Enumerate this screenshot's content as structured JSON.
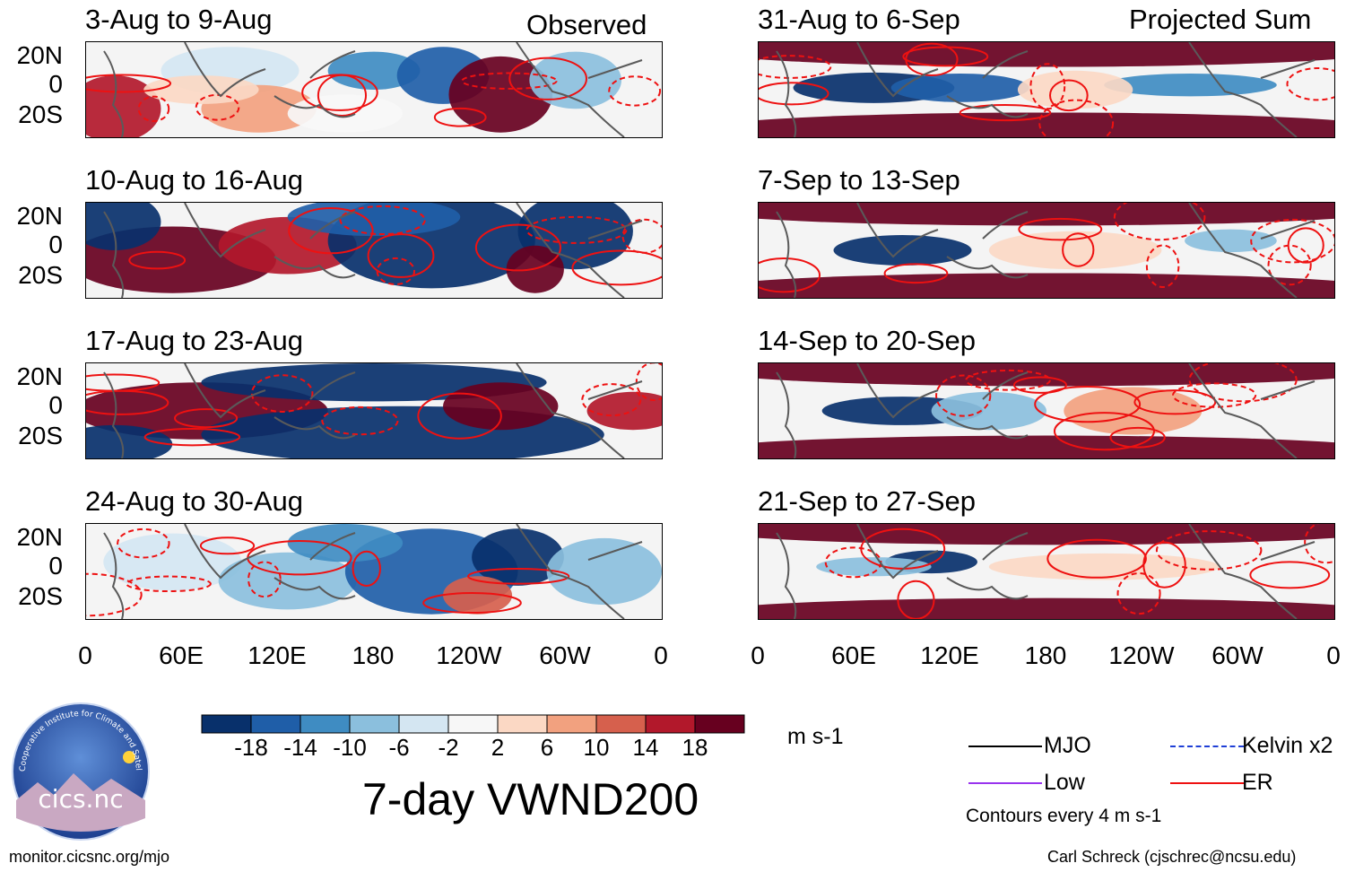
{
  "chart_data": {
    "type": "heatmap",
    "title": "7-day VWND200",
    "units": "m s-1",
    "variable": "VWND200",
    "latitude_tick_labels": [
      "20N",
      "0",
      "20S"
    ],
    "longitude_tick_labels": [
      "0",
      "60E",
      "120E",
      "180",
      "120W",
      "60W",
      "0"
    ],
    "colorbar": {
      "tick_labels": [
        "-18",
        "-14",
        "-10",
        "-6",
        "-2",
        "2",
        "6",
        "10",
        "14",
        "18"
      ],
      "colors": [
        "#08306b",
        "#1f5ea8",
        "#3f8cc2",
        "#8bbfdd",
        "#d4e6f2",
        "#f7f7f7",
        "#fbd8c4",
        "#f2a17f",
        "#d6604d",
        "#b2182b",
        "#67001f"
      ]
    },
    "left_column": {
      "label": "Observed",
      "panels": [
        {
          "title": "3-Aug to 9-Aug"
        },
        {
          "title": "10-Aug to 16-Aug"
        },
        {
          "title": "17-Aug to 23-Aug"
        },
        {
          "title": "24-Aug to 30-Aug"
        }
      ]
    },
    "right_column": {
      "label": "Projected Sum",
      "panels": [
        {
          "title": "31-Aug to 6-Sep"
        },
        {
          "title": "7-Sep to 13-Sep"
        },
        {
          "title": "14-Sep to 20-Sep"
        },
        {
          "title": "21-Sep to 27-Sep"
        }
      ]
    },
    "contour_legend": {
      "items": [
        {
          "label": "MJO",
          "color": "#000000"
        },
        {
          "label": "Kelvin x2",
          "color": "#1f3fd6"
        },
        {
          "label": "Low",
          "color": "#9933ee"
        },
        {
          "label": "ER",
          "color": "#ee1111"
        }
      ],
      "note": "Contours every 4 m s-1"
    }
  },
  "logo": {
    "text": "cics.nc",
    "ring_text": "Cooperative Institute for Climate and Satellites"
  },
  "footer": {
    "left": "monitor.cicsnc.org/mjo",
    "right": "Carl Schreck (cjschrec@ncsu.edu)"
  }
}
